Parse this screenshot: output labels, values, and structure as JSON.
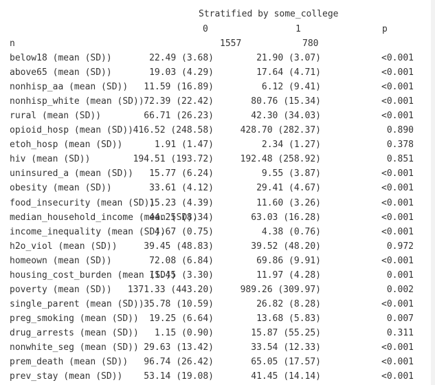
{
  "header": {
    "stratified_by": "Stratified by some_college",
    "col0": "0",
    "col1": "1",
    "colp": "p"
  },
  "n_row": {
    "label": "n",
    "v0": "1557",
    "v1": "780"
  },
  "rows": [
    {
      "label": "below18 (mean (SD))",
      "v0": "22.49 (3.68)",
      "v1": "21.90 (3.07)",
      "p": "<0.001"
    },
    {
      "label": "above65 (mean (SD))",
      "v0": "19.03 (4.29)",
      "v1": "17.64 (4.71)",
      "p": "<0.001"
    },
    {
      "label": "nonhisp_aa (mean (SD))",
      "v0": "11.59 (16.89)",
      "v1": "6.12 (9.41)",
      "p": "<0.001"
    },
    {
      "label": "nonhisp_white (mean (SD))",
      "v0": "72.39 (22.42)",
      "v1": "80.76 (15.34)",
      "p": "<0.001"
    },
    {
      "label": "rural (mean (SD))",
      "v0": "66.71 (26.23)",
      "v1": "42.30 (34.03)",
      "p": "<0.001"
    },
    {
      "label": "opioid_hosp (mean (SD))",
      "v0": "416.52 (248.58)",
      "v1": "428.70 (282.37)",
      "p": "0.890"
    },
    {
      "label": "etoh_hosp (mean (SD))",
      "v0": "1.91 (1.47)",
      "v1": "2.34 (1.27)",
      "p": "0.378"
    },
    {
      "label": "hiv (mean (SD))",
      "v0": "194.51 (193.72)",
      "v1": "192.48 (258.92)",
      "p": "0.851"
    },
    {
      "label": "uninsured_a (mean (SD))",
      "v0": "15.77 (6.24)",
      "v1": "9.55 (3.87)",
      "p": "<0.001"
    },
    {
      "label": "obesity (mean (SD))",
      "v0": "33.61 (4.12)",
      "v1": "29.41 (4.67)",
      "p": "<0.001"
    },
    {
      "label": "food_insecurity (mean (SD))",
      "v0": "15.23 (4.39)",
      "v1": "11.60 (3.26)",
      "p": "<0.001"
    },
    {
      "label": "median_household_income (mean (SD))",
      "v0": "44.25 (8.34)",
      "v1": "63.03 (16.28)",
      "p": "<0.001"
    },
    {
      "label": "income_inequality (mean (SD))",
      "v0": "4.67 (0.75)",
      "v1": "4.38 (0.76)",
      "p": "<0.001"
    },
    {
      "label": "h2o_viol (mean (SD))",
      "v0": "39.45 (48.83)",
      "v1": "39.52 (48.20)",
      "p": "0.972"
    },
    {
      "label": "homeown (mean (SD))",
      "v0": "72.08 (6.84)",
      "v1": "69.86 (9.91)",
      "p": "<0.001"
    },
    {
      "label": "housing_cost_burden (mean (SD))",
      "v0": "11.45 (3.30)",
      "v1": "11.97 (4.28)",
      "p": "0.001"
    },
    {
      "label": "poverty (mean (SD))",
      "v0": "1371.33 (443.20)",
      "v1": "989.26 (309.97)",
      "p": "0.002"
    },
    {
      "label": "single_parent (mean (SD))",
      "v0": "35.78 (10.59)",
      "v1": "26.82 (8.28)",
      "p": "<0.001"
    },
    {
      "label": "preg_smoking (mean (SD))",
      "v0": "19.25 (6.64)",
      "v1": "13.68 (5.83)",
      "p": "0.007"
    },
    {
      "label": "drug_arrests (mean (SD))",
      "v0": "1.15 (0.90)",
      "v1": "15.87 (55.25)",
      "p": "0.311"
    },
    {
      "label": "nonwhite_seg (mean (SD))",
      "v0": "29.63 (13.42)",
      "v1": "33.54 (12.33)",
      "p": "<0.001"
    },
    {
      "label": "prem_death (mean (SD))",
      "v0": "96.74 (26.42)",
      "v1": "65.05 (17.57)",
      "p": "<0.001"
    },
    {
      "label": "prev_stay (mean (SD))",
      "v0": "53.14 (19.08)",
      "v1": "41.45 (14.14)",
      "p": "<0.001"
    }
  ]
}
